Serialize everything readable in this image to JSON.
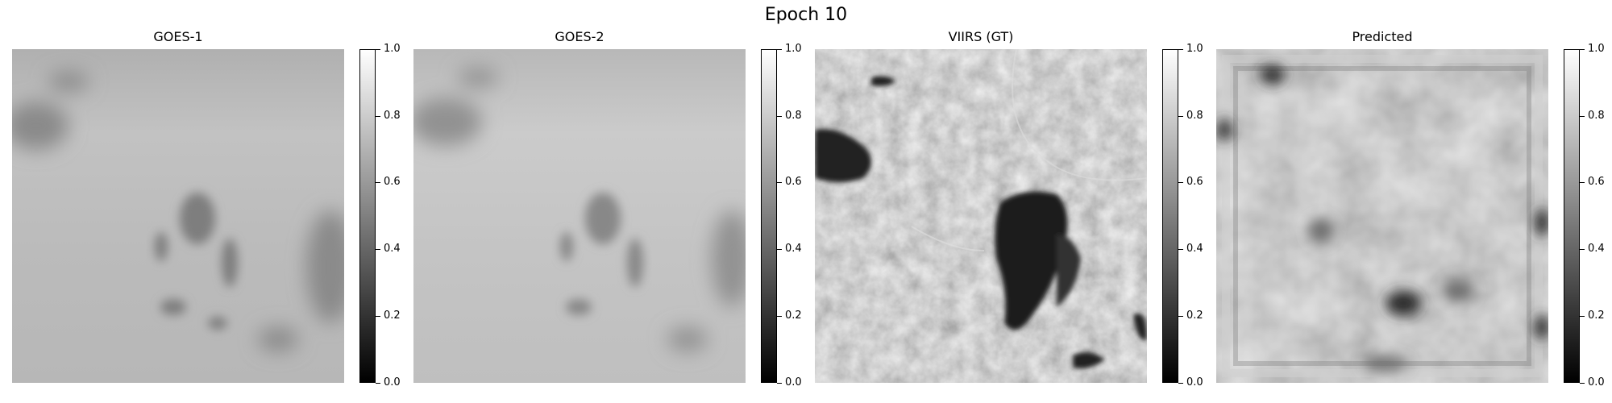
{
  "figure": {
    "title": "Epoch 10"
  },
  "panels": [
    {
      "title": "GOES-1"
    },
    {
      "title": "GOES-2"
    },
    {
      "title": "VIIRS (GT)"
    },
    {
      "title": "Predicted"
    }
  ],
  "colorbar": {
    "colormap": "gray",
    "range": [
      0.0,
      1.0
    ],
    "ticks": [
      "0.0",
      "0.2",
      "0.4",
      "0.6",
      "0.8",
      "1.0"
    ]
  }
}
